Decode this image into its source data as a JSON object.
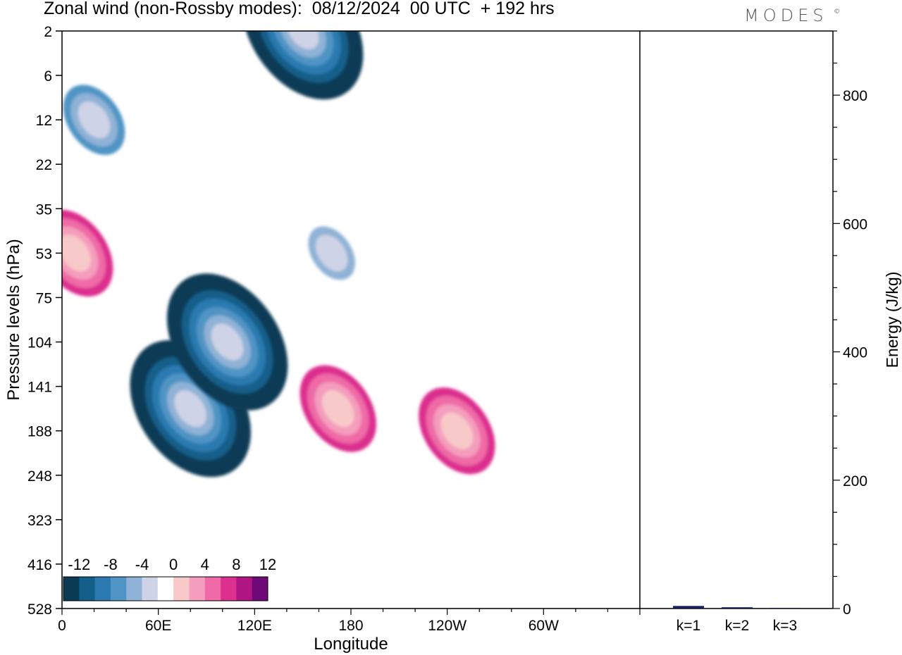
{
  "title": "Zonal wind (non-Rossby modes):  08/12/2024  00 UTC  + 192 hrs",
  "logo": "MODES",
  "logo_mark": "©",
  "colors": {
    "palette": [
      "#0b3a55",
      "#145f8a",
      "#2a7ab0",
      "#4f94c4",
      "#8fb2d6",
      "#cfd3e7",
      "#ffffff",
      "#f8c9c9",
      "#f49dbd",
      "#ef6aa6",
      "#dc2f8e",
      "#b01584",
      "#6e0a78"
    ]
  },
  "chart_data": [
    {
      "type": "heatmap",
      "title": "Zonal wind (non-Rossby modes):  08/12/2024  00 UTC  + 192 hrs",
      "xlabel": "Longitude",
      "ylabel": "Pressure levels (hPa)",
      "x_ticks": [
        "0",
        "60E",
        "120E",
        "180",
        "120W",
        "60W"
      ],
      "x_tick_values": [
        0,
        60,
        120,
        180,
        240,
        300
      ],
      "xlim": [
        0,
        360
      ],
      "y_ticks": [
        "2",
        "6",
        "12",
        "22",
        "35",
        "53",
        "75",
        "104",
        "141",
        "188",
        "248",
        "323",
        "416",
        "528"
      ],
      "y_axis": "inverted, pressure levels evenly spaced",
      "colorbar": {
        "labels": [
          "-12",
          "-8",
          "-4",
          "0",
          "4",
          "8",
          "12"
        ],
        "levels": [
          -14,
          -12,
          -10,
          -8,
          -6,
          -4,
          -2,
          2,
          4,
          6,
          8,
          10,
          12,
          14
        ]
      },
      "features": [
        {
          "x": 80,
          "y": "141-188",
          "value": -14
        },
        {
          "x": 103,
          "y": "104",
          "value": -14
        },
        {
          "x": 150,
          "y": "2",
          "value": -14
        },
        {
          "x": 8,
          "y": "53",
          "value": 8
        },
        {
          "x": 172,
          "y": "141-188",
          "value": 8
        },
        {
          "x": 246,
          "y": "188",
          "value": 8
        },
        {
          "x": 20,
          "y": "12",
          "value": -6
        },
        {
          "x": 168,
          "y": "53",
          "value": -4
        }
      ]
    },
    {
      "type": "bar",
      "categories": [
        "k=1",
        "k=2",
        "k=3"
      ],
      "values": [
        4,
        2,
        1
      ],
      "ylabel": "Energy (J/kg)",
      "ylim": [
        0,
        900
      ],
      "y_ticks": [
        "0",
        "200",
        "400",
        "600",
        "800"
      ],
      "grid": false
    }
  ]
}
